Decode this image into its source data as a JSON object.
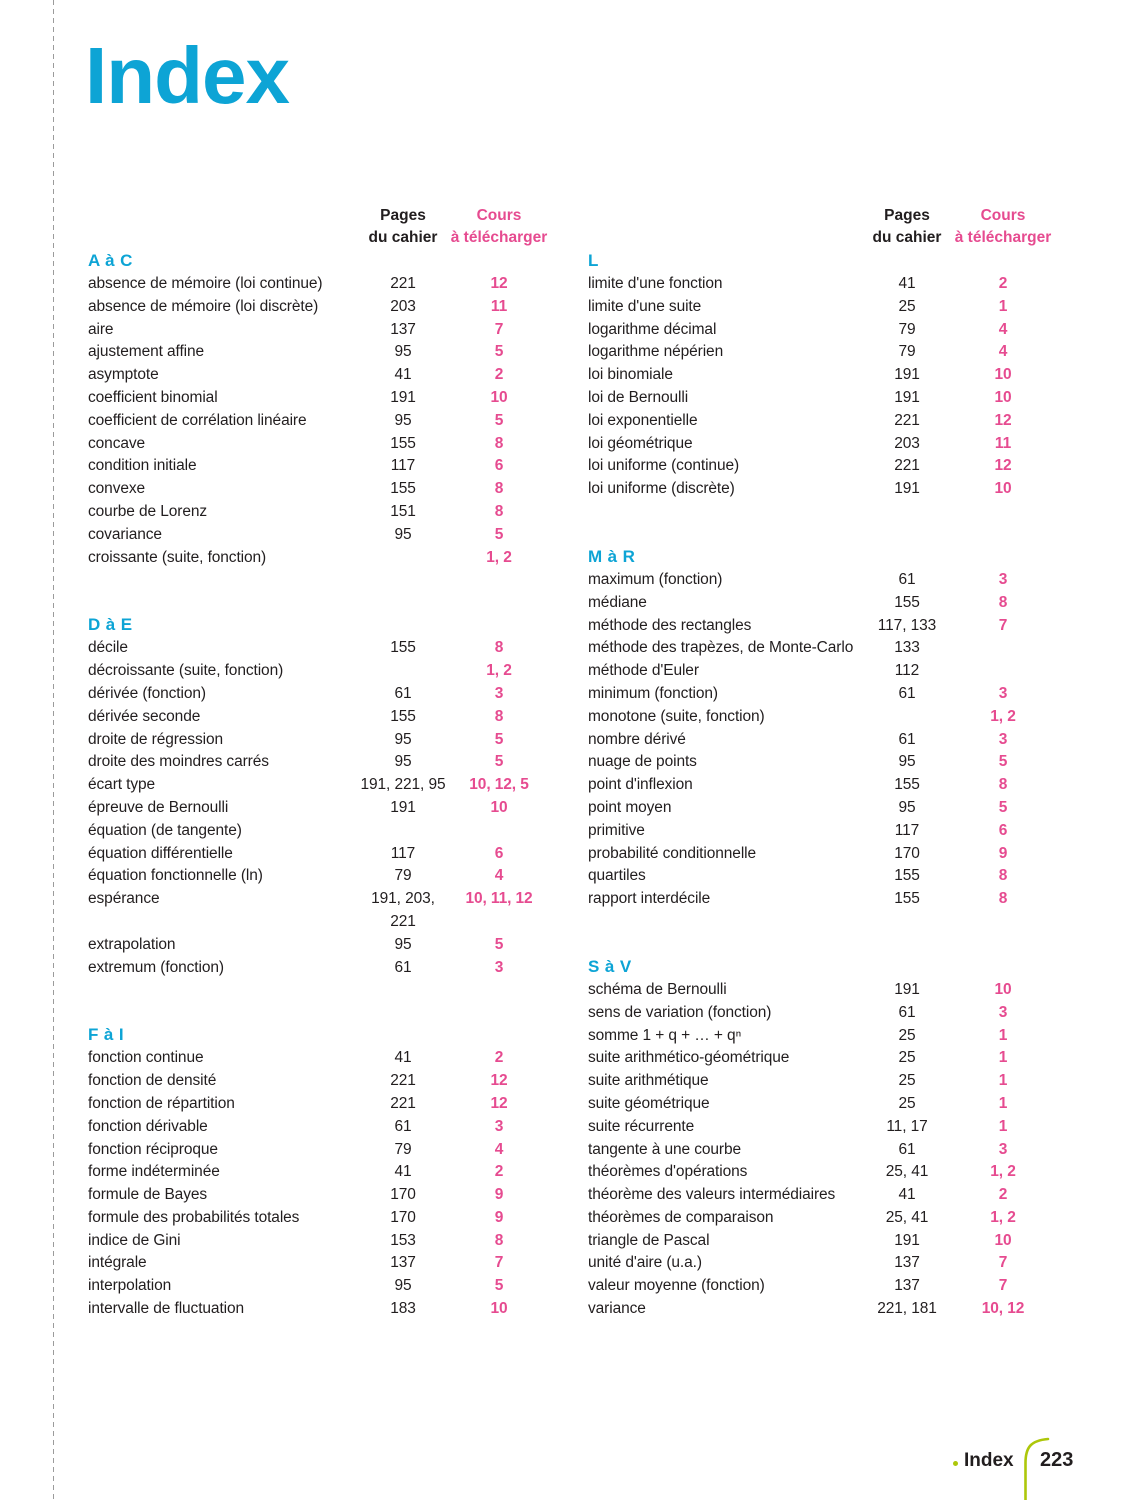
{
  "page": {
    "title": "Index"
  },
  "captions": {
    "pages_line1": "Pages",
    "pages_line2": "du cahier",
    "cours_line1": "Cours",
    "cours_line2": "à télécharger"
  },
  "colors": {
    "accent_cyan": "#0da4d5",
    "accent_pink": "#e64b90",
    "accent_green": "#adc70a",
    "text_dark": "#221e1f",
    "rule_gray": "#9b9b9b"
  },
  "left_column": {
    "sections": [
      {
        "title": "A à C",
        "entries": [
          {
            "term": "absence de mémoire (loi continue)",
            "pages": "221",
            "cours": "12"
          },
          {
            "term": "absence de mémoire (loi discrète)",
            "pages": "203",
            "cours": "11"
          },
          {
            "term": "aire",
            "pages": "137",
            "cours": "7"
          },
          {
            "term": "ajustement affine",
            "pages": "95",
            "cours": "5"
          },
          {
            "term": "asymptote",
            "pages": "41",
            "cours": "2"
          },
          {
            "term": "coefficient binomial",
            "pages": "191",
            "cours": "10"
          },
          {
            "term": "coefficient de corrélation linéaire",
            "pages": "95",
            "cours": "5"
          },
          {
            "term": "concave",
            "pages": "155",
            "cours": "8"
          },
          {
            "term": "condition initiale",
            "pages": "117",
            "cours": "6"
          },
          {
            "term": "convexe",
            "pages": "155",
            "cours": "8"
          },
          {
            "term": "courbe de Lorenz",
            "pages": "151",
            "cours": "8"
          },
          {
            "term": "covariance",
            "pages": "95",
            "cours": "5"
          },
          {
            "term": "croissante (suite, fonction)",
            "pages": "",
            "cours": "1, 2"
          }
        ]
      },
      {
        "title": "D à E",
        "entries": [
          {
            "term": "décile",
            "pages": "155",
            "cours": "8"
          },
          {
            "term": "décroissante (suite, fonction)",
            "pages": "",
            "cours": "1, 2"
          },
          {
            "term": "dérivée (fonction)",
            "pages": "61",
            "cours": "3"
          },
          {
            "term": "dérivée seconde",
            "pages": "155",
            "cours": "8"
          },
          {
            "term": "droite de régression",
            "pages": "95",
            "cours": "5"
          },
          {
            "term": "droite des moindres carrés",
            "pages": "95",
            "cours": "5"
          },
          {
            "term": "écart type",
            "pages": "191, 221, 95",
            "cours": "10, 12, 5"
          },
          {
            "term": "épreuve de Bernoulli",
            "pages": "191",
            "cours": "10"
          },
          {
            "term": "équation (de tangente)",
            "pages": "",
            "cours": ""
          },
          {
            "term": "équation différentielle",
            "pages": "117",
            "cours": "6"
          },
          {
            "term": "équation fonctionnelle (ln)",
            "pages": "79",
            "cours": "4"
          },
          {
            "term": "espérance",
            "pages": "191, 203, 221",
            "cours": "10, 11, 12"
          },
          {
            "term": "extrapolation",
            "pages": "95",
            "cours": "5"
          },
          {
            "term": "extremum (fonction)",
            "pages": "61",
            "cours": "3"
          }
        ]
      },
      {
        "title": "F à I",
        "entries": [
          {
            "term": "fonction continue",
            "pages": "41",
            "cours": "2"
          },
          {
            "term": "fonction de densité",
            "pages": "221",
            "cours": "12"
          },
          {
            "term": "fonction de répartition",
            "pages": "221",
            "cours": "12"
          },
          {
            "term": "fonction dérivable",
            "pages": "61",
            "cours": "3"
          },
          {
            "term": "fonction réciproque",
            "pages": "79",
            "cours": "4"
          },
          {
            "term": "forme indéterminée",
            "pages": "41",
            "cours": "2"
          },
          {
            "term": "formule de Bayes",
            "pages": "170",
            "cours": "9"
          },
          {
            "term": "formule des probabilités totales",
            "pages": "170",
            "cours": "9"
          },
          {
            "term": "indice de Gini",
            "pages": "153",
            "cours": "8"
          },
          {
            "term": "intégrale",
            "pages": "137",
            "cours": "7"
          },
          {
            "term": "interpolation",
            "pages": "95",
            "cours": "5"
          },
          {
            "term": "intervalle de fluctuation",
            "pages": "183",
            "cours": "10"
          }
        ]
      }
    ]
  },
  "right_column": {
    "sections": [
      {
        "title": "L",
        "entries": [
          {
            "term": "limite d'une fonction",
            "pages": "41",
            "cours": "2"
          },
          {
            "term": "limite d'une suite",
            "pages": "25",
            "cours": "1"
          },
          {
            "term": "logarithme décimal",
            "pages": "79",
            "cours": "4"
          },
          {
            "term": "logarithme népérien",
            "pages": "79",
            "cours": "4"
          },
          {
            "term": "loi binomiale",
            "pages": "191",
            "cours": "10"
          },
          {
            "term": "loi de Bernoulli",
            "pages": "191",
            "cours": "10"
          },
          {
            "term": "loi exponentielle",
            "pages": "221",
            "cours": "12"
          },
          {
            "term": "loi géométrique",
            "pages": "203",
            "cours": "11"
          },
          {
            "term": "loi uniforme (continue)",
            "pages": "221",
            "cours": "12"
          },
          {
            "term": "loi uniforme (discrète)",
            "pages": "191",
            "cours": "10"
          }
        ]
      },
      {
        "title": "M à R",
        "entries": [
          {
            "term": "maximum (fonction)",
            "pages": "61",
            "cours": "3"
          },
          {
            "term": "médiane",
            "pages": "155",
            "cours": "8"
          },
          {
            "term": "méthode des rectangles",
            "pages": "117, 133",
            "cours": "7"
          },
          {
            "term": "méthode des trapèzes, de Monte-Carlo",
            "pages": "133",
            "cours": ""
          },
          {
            "term": "méthode d'Euler",
            "pages": "112",
            "cours": ""
          },
          {
            "term": "minimum (fonction)",
            "pages": "61",
            "cours": "3"
          },
          {
            "term": "monotone (suite, fonction)",
            "pages": "",
            "cours": "1, 2"
          },
          {
            "term": "nombre dérivé",
            "pages": "61",
            "cours": "3"
          },
          {
            "term": "nuage de points",
            "pages": "95",
            "cours": "5"
          },
          {
            "term": "point d'inflexion",
            "pages": "155",
            "cours": "8"
          },
          {
            "term": "point moyen",
            "pages": "95",
            "cours": "5"
          },
          {
            "term": "primitive",
            "pages": "117",
            "cours": "6"
          },
          {
            "term": "probabilité conditionnelle",
            "pages": "170",
            "cours": "9"
          },
          {
            "term": "quartiles",
            "pages": "155",
            "cours": "8"
          },
          {
            "term": "rapport interdécile",
            "pages": "155",
            "cours": "8"
          }
        ]
      },
      {
        "title": "S à V",
        "entries": [
          {
            "term": "schéma de Bernoulli",
            "pages": "191",
            "cours": "10"
          },
          {
            "term": "sens de variation (fonction)",
            "pages": "61",
            "cours": "3"
          },
          {
            "term": "somme 1 + q + … + qⁿ",
            "pages": "25",
            "cours": "1"
          },
          {
            "term": "suite arithmético-géométrique",
            "pages": "25",
            "cours": "1"
          },
          {
            "term": "suite arithmétique",
            "pages": "25",
            "cours": "1"
          },
          {
            "term": "suite géométrique",
            "pages": "25",
            "cours": "1"
          },
          {
            "term": "suite récurrente",
            "pages": "11, 17",
            "cours": "1"
          },
          {
            "term": "tangente à une courbe",
            "pages": "61",
            "cours": "3"
          },
          {
            "term": "théorèmes d'opérations",
            "pages": "25, 41",
            "cours": "1, 2"
          },
          {
            "term": "théorème des valeurs intermédiaires",
            "pages": "41",
            "cours": "2"
          },
          {
            "term": "théorèmes de comparaison",
            "pages": "25, 41",
            "cours": "1, 2"
          },
          {
            "term": "triangle de Pascal",
            "pages": "191",
            "cours": "10"
          },
          {
            "term": "unité d'aire (u.a.)",
            "pages": "137",
            "cours": "7"
          },
          {
            "term": "valeur moyenne (fonction)",
            "pages": "137",
            "cours": "7"
          },
          {
            "term": "variance",
            "pages": "221, 181",
            "cours": "10, 12"
          }
        ]
      }
    ]
  },
  "footer": {
    "label": "Index",
    "page_number": "223"
  }
}
